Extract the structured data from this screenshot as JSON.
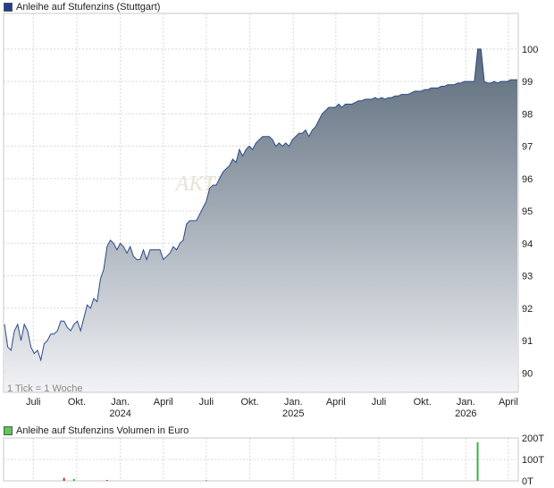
{
  "chart_data": [
    {
      "type": "area",
      "title": "Anleihe auf Stufenzins (Stuttgart)",
      "note": "1 Tick = 1 Woche",
      "watermark": "AKTIE",
      "ylim": [
        89.4,
        101.1
      ],
      "yticks": [
        90,
        91,
        92,
        93,
        94,
        95,
        96,
        97,
        98,
        99,
        100
      ],
      "xlim": [
        "2023-05-01",
        "2026-04-20"
      ],
      "xticks": [
        {
          "date": "2023-07-01",
          "label": "Juli"
        },
        {
          "date": "2023-10-01",
          "label": "Okt."
        },
        {
          "date": "2024-01-01",
          "label": "Jan.",
          "year": "2024"
        },
        {
          "date": "2024-04-01",
          "label": "April"
        },
        {
          "date": "2024-07-01",
          "label": "Juli"
        },
        {
          "date": "2024-10-01",
          "label": "Okt."
        },
        {
          "date": "2025-01-01",
          "label": "Jan.",
          "year": "2025"
        },
        {
          "date": "2025-04-01",
          "label": "April"
        },
        {
          "date": "2025-07-01",
          "label": "Juli"
        },
        {
          "date": "2025-10-01",
          "label": "Okt."
        },
        {
          "date": "2026-01-01",
          "label": "Jan.",
          "year": "2026"
        },
        {
          "date": "2026-04-01",
          "label": "April"
        }
      ],
      "colors": {
        "line": "#2a4a8a",
        "fill_top": "#5b6b7b",
        "fill_bottom": "#f2f3f6",
        "legend": "#1f3f8f"
      },
      "series": [
        {
          "points": [
            [
              "2023-05-01",
              91.5
            ],
            [
              "2023-05-08",
              90.8
            ],
            [
              "2023-05-15",
              90.7
            ],
            [
              "2023-05-22",
              91.3
            ],
            [
              "2023-05-29",
              91.5
            ],
            [
              "2023-06-05",
              91.0
            ],
            [
              "2023-06-12",
              91.5
            ],
            [
              "2023-06-19",
              91.3
            ],
            [
              "2023-06-26",
              90.8
            ],
            [
              "2023-07-03",
              90.6
            ],
            [
              "2023-07-10",
              90.7
            ],
            [
              "2023-07-17",
              90.4
            ],
            [
              "2023-07-24",
              90.9
            ],
            [
              "2023-07-31",
              91.0
            ],
            [
              "2023-08-07",
              91.2
            ],
            [
              "2023-08-14",
              91.2
            ],
            [
              "2023-08-21",
              91.3
            ],
            [
              "2023-08-28",
              91.6
            ],
            [
              "2023-09-04",
              91.6
            ],
            [
              "2023-09-11",
              91.4
            ],
            [
              "2023-09-18",
              91.3
            ],
            [
              "2023-09-25",
              91.5
            ],
            [
              "2023-10-02",
              91.6
            ],
            [
              "2023-10-09",
              91.3
            ],
            [
              "2023-10-16",
              91.7
            ],
            [
              "2023-10-23",
              92.1
            ],
            [
              "2023-10-30",
              92.0
            ],
            [
              "2023-11-06",
              92.3
            ],
            [
              "2023-11-13",
              92.2
            ],
            [
              "2023-11-20",
              92.9
            ],
            [
              "2023-11-27",
              93.2
            ],
            [
              "2023-12-04",
              93.9
            ],
            [
              "2023-12-11",
              94.1
            ],
            [
              "2023-12-18",
              94.0
            ],
            [
              "2023-12-25",
              93.8
            ],
            [
              "2024-01-01",
              94.0
            ],
            [
              "2024-01-08",
              93.9
            ],
            [
              "2024-01-15",
              93.7
            ],
            [
              "2024-01-22",
              93.9
            ],
            [
              "2024-01-29",
              93.6
            ],
            [
              "2024-02-05",
              93.5
            ],
            [
              "2024-02-12",
              93.5
            ],
            [
              "2024-02-19",
              93.8
            ],
            [
              "2024-02-26",
              93.5
            ],
            [
              "2024-03-04",
              93.8
            ],
            [
              "2024-03-11",
              93.8
            ],
            [
              "2024-03-18",
              93.8
            ],
            [
              "2024-03-25",
              93.8
            ],
            [
              "2024-04-01",
              93.5
            ],
            [
              "2024-04-08",
              93.6
            ],
            [
              "2024-04-15",
              93.7
            ],
            [
              "2024-04-22",
              93.9
            ],
            [
              "2024-04-29",
              93.8
            ],
            [
              "2024-05-06",
              94.0
            ],
            [
              "2024-05-13",
              94.1
            ],
            [
              "2024-05-20",
              94.6
            ],
            [
              "2024-05-27",
              94.7
            ],
            [
              "2024-06-03",
              94.7
            ],
            [
              "2024-06-10",
              94.7
            ],
            [
              "2024-06-17",
              94.9
            ],
            [
              "2024-06-24",
              95.1
            ],
            [
              "2024-07-01",
              95.3
            ],
            [
              "2024-07-08",
              95.7
            ],
            [
              "2024-07-15",
              95.8
            ],
            [
              "2024-07-22",
              95.8
            ],
            [
              "2024-07-29",
              96.0
            ],
            [
              "2024-08-05",
              96.2
            ],
            [
              "2024-08-12",
              96.3
            ],
            [
              "2024-08-19",
              96.4
            ],
            [
              "2024-08-26",
              96.6
            ],
            [
              "2024-09-02",
              96.5
            ],
            [
              "2024-09-09",
              96.9
            ],
            [
              "2024-09-16",
              96.7
            ],
            [
              "2024-09-23",
              96.9
            ],
            [
              "2024-09-30",
              97.0
            ],
            [
              "2024-10-07",
              96.9
            ],
            [
              "2024-10-14",
              97.1
            ],
            [
              "2024-10-21",
              97.2
            ],
            [
              "2024-10-28",
              97.3
            ],
            [
              "2024-11-04",
              97.3
            ],
            [
              "2024-11-11",
              97.3
            ],
            [
              "2024-11-18",
              97.2
            ],
            [
              "2024-11-25",
              97.0
            ],
            [
              "2024-12-02",
              97.1
            ],
            [
              "2024-12-09",
              97.0
            ],
            [
              "2024-12-16",
              97.1
            ],
            [
              "2024-12-23",
              97.0
            ],
            [
              "2024-12-30",
              97.2
            ],
            [
              "2025-01-06",
              97.3
            ],
            [
              "2025-01-13",
              97.4
            ],
            [
              "2025-01-20",
              97.4
            ],
            [
              "2025-01-27",
              97.5
            ],
            [
              "2025-02-03",
              97.3
            ],
            [
              "2025-02-10",
              97.5
            ],
            [
              "2025-02-17",
              97.6
            ],
            [
              "2025-02-24",
              97.8
            ],
            [
              "2025-03-03",
              98.0
            ],
            [
              "2025-03-10",
              98.1
            ],
            [
              "2025-03-17",
              98.2
            ],
            [
              "2025-03-24",
              98.2
            ],
            [
              "2025-03-31",
              98.2
            ],
            [
              "2025-04-07",
              98.3
            ],
            [
              "2025-04-14",
              98.2
            ],
            [
              "2025-04-21",
              98.3
            ],
            [
              "2025-04-28",
              98.3
            ],
            [
              "2025-05-05",
              98.3
            ],
            [
              "2025-05-12",
              98.35
            ],
            [
              "2025-05-19",
              98.4
            ],
            [
              "2025-05-26",
              98.4
            ],
            [
              "2025-06-02",
              98.45
            ],
            [
              "2025-06-09",
              98.45
            ],
            [
              "2025-06-16",
              98.45
            ],
            [
              "2025-06-23",
              98.5
            ],
            [
              "2025-06-30",
              98.45
            ],
            [
              "2025-07-07",
              98.5
            ],
            [
              "2025-07-14",
              98.45
            ],
            [
              "2025-07-21",
              98.5
            ],
            [
              "2025-07-28",
              98.5
            ],
            [
              "2025-08-04",
              98.55
            ],
            [
              "2025-08-11",
              98.55
            ],
            [
              "2025-08-18",
              98.6
            ],
            [
              "2025-08-25",
              98.6
            ],
            [
              "2025-09-01",
              98.6
            ],
            [
              "2025-09-08",
              98.65
            ],
            [
              "2025-09-15",
              98.7
            ],
            [
              "2025-09-22",
              98.7
            ],
            [
              "2025-09-29",
              98.7
            ],
            [
              "2025-10-06",
              98.75
            ],
            [
              "2025-10-13",
              98.75
            ],
            [
              "2025-10-20",
              98.8
            ],
            [
              "2025-10-27",
              98.8
            ],
            [
              "2025-11-03",
              98.8
            ],
            [
              "2025-11-10",
              98.85
            ],
            [
              "2025-11-17",
              98.85
            ],
            [
              "2025-11-24",
              98.9
            ],
            [
              "2025-12-01",
              98.9
            ],
            [
              "2025-12-08",
              98.9
            ],
            [
              "2025-12-15",
              98.95
            ],
            [
              "2025-12-22",
              98.95
            ],
            [
              "2025-12-29",
              99.0
            ],
            [
              "2026-01-05",
              99.0
            ],
            [
              "2026-01-12",
              99.0
            ],
            [
              "2026-01-19",
              99.0
            ],
            [
              "2026-01-26",
              100.0
            ],
            [
              "2026-02-02",
              100.0
            ],
            [
              "2026-02-09",
              99.0
            ],
            [
              "2026-02-16",
              98.95
            ],
            [
              "2026-02-23",
              98.95
            ],
            [
              "2026-03-02",
              99.0
            ],
            [
              "2026-03-09",
              98.95
            ],
            [
              "2026-03-16",
              99.0
            ],
            [
              "2026-03-23",
              99.0
            ],
            [
              "2026-03-30",
              99.0
            ],
            [
              "2026-04-06",
              99.05
            ],
            [
              "2026-04-13",
              99.05
            ],
            [
              "2026-04-20",
              99.05
            ]
          ]
        }
      ]
    },
    {
      "type": "bar",
      "title": "Anleihe auf Stufenzins Volumen in Euro",
      "ylim": [
        0,
        200
      ],
      "yticks": [
        0,
        100,
        200
      ],
      "ytick_labels": [
        "0T",
        "100T",
        "200T"
      ],
      "colors": {
        "up": "#3cb043",
        "down": "#d03030",
        "legend": "#5cc85c"
      },
      "bars": [
        {
          "date": "2023-09-04",
          "value": 14,
          "dir": "down"
        },
        {
          "date": "2023-09-25",
          "value": 9,
          "dir": "up"
        },
        {
          "date": "2023-12-04",
          "value": 4,
          "dir": "down"
        },
        {
          "date": "2024-07-01",
          "value": 3,
          "dir": "up"
        },
        {
          "date": "2026-01-26",
          "value": 180,
          "dir": "up"
        }
      ]
    }
  ]
}
